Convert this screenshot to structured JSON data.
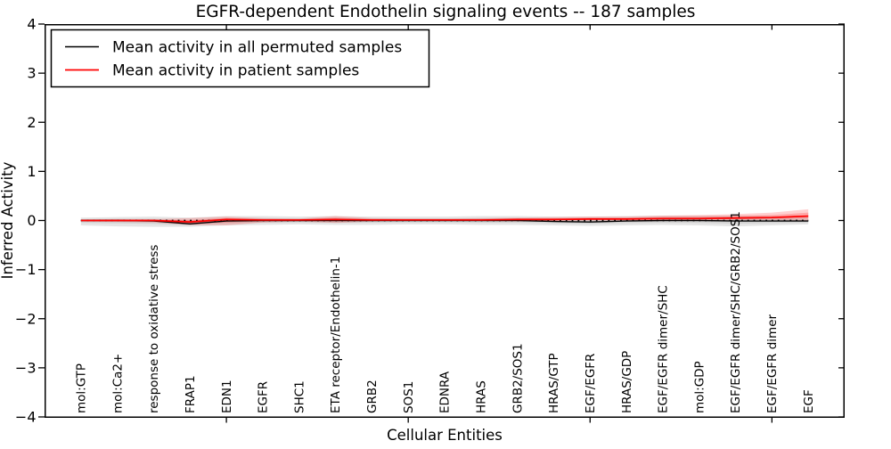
{
  "title": "EGFR-dependent Endothelin signaling events -- 187 samples",
  "legend": {
    "items": [
      {
        "label": "Mean activity in all permuted samples",
        "color": "#000000"
      },
      {
        "label": "Mean activity in patient samples",
        "color": "#ff0000"
      }
    ]
  },
  "chart_data": {
    "type": "line",
    "title": "EGFR-dependent Endothelin signaling events -- 187 samples",
    "xlabel": "Cellular Entities",
    "ylabel": "Inferred Activity",
    "ylim": [
      -4,
      4
    ],
    "yticks": [
      4,
      3,
      2,
      1,
      0,
      -1,
      -2,
      -3,
      -4
    ],
    "ytick_labels": [
      "4",
      "3",
      "2",
      "1",
      "0",
      "−1",
      "−2",
      "−3",
      "−4"
    ],
    "grid": false,
    "legend_position": "upper left",
    "zero_line": {
      "value": 0,
      "style": "dotted",
      "color": "#000000"
    },
    "categories": [
      "mol:GTP",
      "mol:Ca2+",
      "response to oxidative stress",
      "FRAP1",
      "EDN1",
      "EGFR",
      "SHC1",
      "ETA receptor/Endothelin-1",
      "GRB2",
      "SOS1",
      "EDNRA",
      "HRAS",
      "GRB2/SOS1",
      "HRAS/GTP",
      "EGF/EGFR",
      "HRAS/GDP",
      "EGF/EGFR dimer/SHC",
      "mol:GDP",
      "EGF/EGFR dimer/SHC/GRB2/SOS1",
      "EGF/EGFR dimer",
      "EGF"
    ],
    "series": [
      {
        "name": "Mean activity in all permuted samples",
        "color": "#000000",
        "band_color_rgb": "0,0,0",
        "values": [
          0.0,
          0.0,
          -0.01,
          -0.07,
          -0.01,
          0.0,
          0.0,
          0.0,
          0.0,
          0.0,
          0.0,
          0.0,
          0.0,
          -0.02,
          -0.03,
          -0.01,
          0.0,
          0.0,
          -0.01,
          -0.01,
          -0.01
        ],
        "band_lo": [
          -0.1,
          -0.12,
          -0.13,
          -0.13,
          -0.1,
          -0.09,
          -0.08,
          -0.09,
          -0.09,
          -0.08,
          -0.08,
          -0.09,
          -0.09,
          -0.1,
          -0.11,
          -0.1,
          -0.09,
          -0.1,
          -0.12,
          -0.1,
          -0.08
        ],
        "band_hi": [
          0.06,
          0.07,
          0.08,
          0.06,
          0.09,
          0.09,
          0.08,
          0.09,
          0.08,
          0.08,
          0.08,
          0.09,
          0.09,
          0.08,
          0.08,
          0.09,
          0.1,
          0.1,
          0.1,
          0.09,
          0.07
        ]
      },
      {
        "name": "Mean activity in patient samples",
        "color": "#ff0000",
        "band_color_rgb": "255,0,0",
        "values": [
          0.0,
          0.0,
          0.0,
          -0.03,
          0.02,
          0.01,
          0.01,
          0.02,
          0.01,
          0.01,
          0.01,
          0.01,
          0.02,
          0.02,
          0.03,
          0.03,
          0.04,
          0.04,
          0.05,
          0.06,
          0.09
        ],
        "band_lo": [
          -0.02,
          -0.03,
          -0.04,
          -0.09,
          -0.1,
          -0.04,
          -0.02,
          -0.05,
          -0.02,
          -0.01,
          -0.01,
          -0.01,
          -0.02,
          -0.01,
          0.0,
          0.0,
          0.0,
          0.0,
          0.01,
          0.01,
          0.0
        ],
        "band_hi": [
          0.02,
          0.03,
          0.03,
          0.05,
          0.08,
          0.05,
          0.04,
          0.09,
          0.05,
          0.04,
          0.04,
          0.05,
          0.06,
          0.07,
          0.08,
          0.08,
          0.1,
          0.11,
          0.13,
          0.16,
          0.23
        ]
      }
    ]
  }
}
